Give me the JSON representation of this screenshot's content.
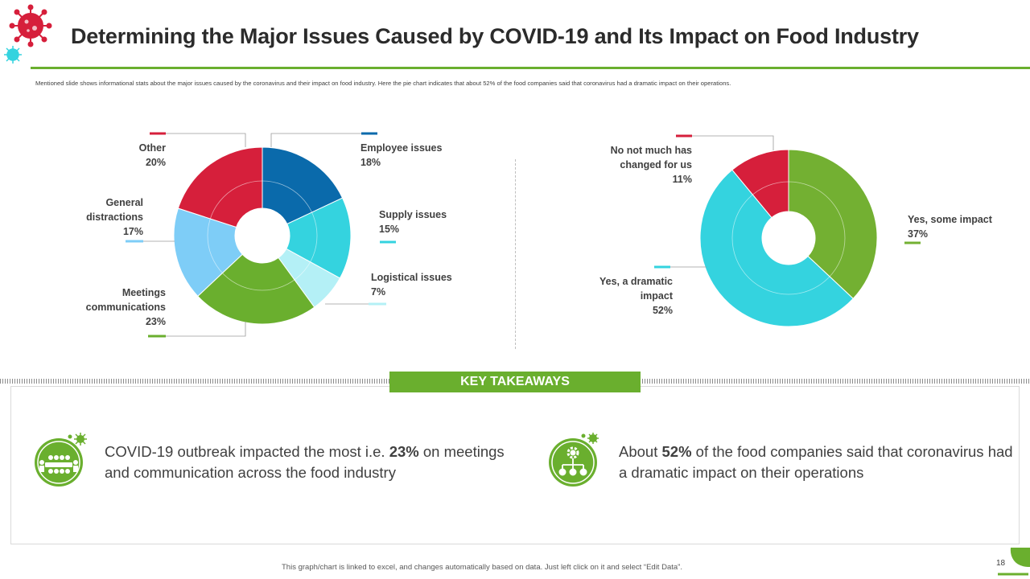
{
  "header": {
    "title": "Determining the Major Issues Caused by COVID-19 and Its Impact on Food Industry",
    "subtitle": "Mentioned slide shows informational stats about the major issues caused by the coronavirus and their impact on food industry. Here the pie chart indicates that about 52% of the food companies said that coronavirus had a dramatic impact on their operations."
  },
  "chart_data": [
    {
      "type": "pie",
      "categories": [
        "Employee issues",
        "Supply issues",
        "Logistical issues",
        "Meetings communications",
        "General distractions",
        "Other"
      ],
      "values": [
        18,
        15,
        7,
        23,
        17,
        20
      ],
      "value_labels": [
        "18%",
        "15%",
        "7%",
        "23%",
        "17%",
        "20%"
      ],
      "colors": [
        "#0a6aab",
        "#34d3df",
        "#b4f0f6",
        "#6aaf2e",
        "#7ecdf7",
        "#d61f3b"
      ],
      "label_lines": [
        [
          "Employee issues"
        ],
        [
          "Supply issues"
        ],
        [
          "Logistical issues"
        ],
        [
          "Meetings",
          "communications"
        ],
        [
          "General",
          "distractions"
        ],
        [
          "Other"
        ]
      ]
    },
    {
      "type": "pie",
      "categories": [
        "Yes, some impact",
        "Yes, a dramatic impact",
        "No not much has changed for us"
      ],
      "values": [
        37,
        52,
        11
      ],
      "value_labels": [
        "37%",
        "52%",
        "11%"
      ],
      "colors": [
        "#73b032",
        "#34d3df",
        "#d61f3b"
      ],
      "label_lines": [
        [
          "Yes, some impact"
        ],
        [
          "Yes, a dramatic",
          "impact"
        ],
        [
          "No not much has",
          "changed for us"
        ]
      ]
    }
  ],
  "takeaways": {
    "header": "KEY TAKEAWAYS",
    "item1": {
      "pre": "COVID-19 outbreak impacted the most i.e. ",
      "bold": "23%",
      "post": " on meetings and communication across the food industry",
      "icon": "meeting-icon"
    },
    "item2": {
      "pre": "About ",
      "bold": "52%",
      "post": " of the food companies said that coronavirus had a dramatic impact on their operations",
      "icon": "network-gear-icon"
    }
  },
  "footer": {
    "note": "This graph/chart is linked to excel, and changes automatically based on data. Just left click on it and select “Edit Data”.",
    "page": "18"
  }
}
